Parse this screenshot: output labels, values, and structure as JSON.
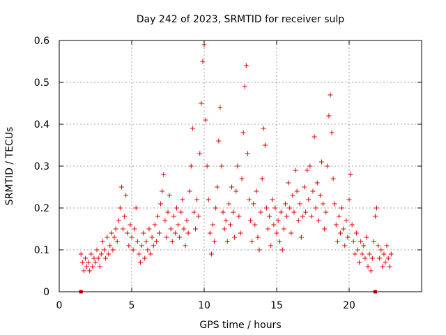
{
  "chart_data": {
    "type": "scatter",
    "title": "Day 242 of 2023, SRMTID for receiver sulp",
    "xlabel": "GPS time / hours",
    "ylabel": "SRMTID / TECUs",
    "xlim": [
      0,
      25
    ],
    "ylim": [
      0,
      0.6
    ],
    "x_ticks": [
      0,
      5,
      10,
      15,
      20
    ],
    "x_tick_labels": [
      "0",
      "5",
      "10",
      "15",
      "20"
    ],
    "y_ticks": [
      0,
      0.1,
      0.2,
      0.3,
      0.4,
      0.5,
      0.6
    ],
    "y_tick_labels": [
      "0",
      "0.1",
      "0.2",
      "0.3",
      "0.4",
      "0.5",
      "0.6"
    ],
    "grid": true,
    "marker": "plus",
    "color": "#e00000",
    "series": [
      {
        "name": "SRMTID",
        "points": [
          [
            1.5,
            0.09
          ],
          [
            1.6,
            0.07
          ],
          [
            1.7,
            0.05
          ],
          [
            1.8,
            0.08
          ],
          [
            1.9,
            0.06
          ],
          [
            2.0,
            0.07
          ],
          [
            2.1,
            0.05
          ],
          [
            2.2,
            0.09
          ],
          [
            2.3,
            0.06
          ],
          [
            2.4,
            0.08
          ],
          [
            2.5,
            0.07
          ],
          [
            2.6,
            0.1
          ],
          [
            2.7,
            0.08
          ],
          [
            2.8,
            0.06
          ],
          [
            2.9,
            0.09
          ],
          [
            3.0,
            0.12
          ],
          [
            3.1,
            0.1
          ],
          [
            3.2,
            0.08
          ],
          [
            3.3,
            0.13
          ],
          [
            3.4,
            0.09
          ],
          [
            3.5,
            0.11
          ],
          [
            3.6,
            0.14
          ],
          [
            3.7,
            0.1
          ],
          [
            3.8,
            0.13
          ],
          [
            3.9,
            0.15
          ],
          [
            4.0,
            0.12
          ],
          [
            4.1,
            0.17
          ],
          [
            4.2,
            0.2
          ],
          [
            4.3,
            0.25
          ],
          [
            4.4,
            0.15
          ],
          [
            4.5,
            0.18
          ],
          [
            4.6,
            0.23
          ],
          [
            4.7,
            0.14
          ],
          [
            4.8,
            0.11
          ],
          [
            4.9,
            0.16
          ],
          [
            5.0,
            0.13
          ],
          [
            5.1,
            0.1
          ],
          [
            5.2,
            0.15
          ],
          [
            5.3,
            0.2
          ],
          [
            5.4,
            0.12
          ],
          [
            5.5,
            0.09
          ],
          [
            5.6,
            0.07
          ],
          [
            5.7,
            0.11
          ],
          [
            5.8,
            0.14
          ],
          [
            5.9,
            0.08
          ],
          [
            6.0,
            0.12
          ],
          [
            6.1,
            0.1
          ],
          [
            6.2,
            0.15
          ],
          [
            6.3,
            0.09
          ],
          [
            6.4,
            0.13
          ],
          [
            6.5,
            0.11
          ],
          [
            6.6,
            0.16
          ],
          [
            6.7,
            0.12
          ],
          [
            6.8,
            0.18
          ],
          [
            6.9,
            0.14
          ],
          [
            7.0,
            0.21
          ],
          [
            7.1,
            0.24
          ],
          [
            7.2,
            0.28
          ],
          [
            7.3,
            0.17
          ],
          [
            7.4,
            0.13
          ],
          [
            7.5,
            0.19
          ],
          [
            7.6,
            0.23
          ],
          [
            7.7,
            0.15
          ],
          [
            7.8,
            0.12
          ],
          [
            7.9,
            0.18
          ],
          [
            8.0,
            0.14
          ],
          [
            8.1,
            0.2
          ],
          [
            8.2,
            0.16
          ],
          [
            8.3,
            0.13
          ],
          [
            8.4,
            0.19
          ],
          [
            8.5,
            0.22
          ],
          [
            8.6,
            0.15
          ],
          [
            8.7,
            0.11
          ],
          [
            8.8,
            0.17
          ],
          [
            8.9,
            0.14
          ],
          [
            9.0,
            0.24
          ],
          [
            9.1,
            0.3
          ],
          [
            9.2,
            0.39
          ],
          [
            9.3,
            0.19
          ],
          [
            9.4,
            0.15
          ],
          [
            9.5,
            0.22
          ],
          [
            9.6,
            0.18
          ],
          [
            9.7,
            0.33
          ],
          [
            9.8,
            0.45
          ],
          [
            9.9,
            0.55
          ],
          [
            10.0,
            0.59
          ],
          [
            10.1,
            0.41
          ],
          [
            10.2,
            0.3
          ],
          [
            10.3,
            0.22
          ],
          [
            10.4,
            0.14
          ],
          [
            10.5,
            0.09
          ],
          [
            10.6,
            0.16
          ],
          [
            10.7,
            0.12
          ],
          [
            10.8,
            0.2
          ],
          [
            10.9,
            0.25
          ],
          [
            11.0,
            0.36
          ],
          [
            11.1,
            0.44
          ],
          [
            11.2,
            0.3
          ],
          [
            11.3,
            0.19
          ],
          [
            11.4,
            0.15
          ],
          [
            11.5,
            0.17
          ],
          [
            11.6,
            0.12
          ],
          [
            11.7,
            0.21
          ],
          [
            11.8,
            0.16
          ],
          [
            11.9,
            0.25
          ],
          [
            12.0,
            0.19
          ],
          [
            12.1,
            0.13
          ],
          [
            12.2,
            0.24
          ],
          [
            12.3,
            0.3
          ],
          [
            12.4,
            0.18
          ],
          [
            12.5,
            0.14
          ],
          [
            12.6,
            0.27
          ],
          [
            12.7,
            0.38
          ],
          [
            12.8,
            0.49
          ],
          [
            12.9,
            0.54
          ],
          [
            13.0,
            0.33
          ],
          [
            13.1,
            0.22
          ],
          [
            13.2,
            0.17
          ],
          [
            13.3,
            0.12
          ],
          [
            13.4,
            0.21
          ],
          [
            13.5,
            0.16
          ],
          [
            13.6,
            0.24
          ],
          [
            13.7,
            0.13
          ],
          [
            13.8,
            0.1
          ],
          [
            13.9,
            0.19
          ],
          [
            14.0,
            0.27
          ],
          [
            14.1,
            0.39
          ],
          [
            14.2,
            0.35
          ],
          [
            14.3,
            0.2
          ],
          [
            14.4,
            0.15
          ],
          [
            14.5,
            0.18
          ],
          [
            14.6,
            0.11
          ],
          [
            14.7,
            0.22
          ],
          [
            14.8,
            0.16
          ],
          [
            14.9,
            0.2
          ],
          [
            15.0,
            0.14
          ],
          [
            15.1,
            0.17
          ],
          [
            15.2,
            0.12
          ],
          [
            15.3,
            0.19
          ],
          [
            15.4,
            0.1
          ],
          [
            15.5,
            0.15
          ],
          [
            15.6,
            0.21
          ],
          [
            15.7,
            0.18
          ],
          [
            15.8,
            0.26
          ],
          [
            15.9,
            0.2
          ],
          [
            16.0,
            0.14
          ],
          [
            16.1,
            0.23
          ],
          [
            16.2,
            0.19
          ],
          [
            16.3,
            0.29
          ],
          [
            16.4,
            0.24
          ],
          [
            16.5,
            0.17
          ],
          [
            16.6,
            0.21
          ],
          [
            16.7,
            0.13
          ],
          [
            16.8,
            0.18
          ],
          [
            16.9,
            0.25
          ],
          [
            17.0,
            0.19
          ],
          [
            17.1,
            0.29
          ],
          [
            17.2,
            0.22
          ],
          [
            17.3,
            0.3
          ],
          [
            17.4,
            0.18
          ],
          [
            17.5,
            0.24
          ],
          [
            17.6,
            0.37
          ],
          [
            17.7,
            0.2
          ],
          [
            17.8,
            0.26
          ],
          [
            17.9,
            0.17
          ],
          [
            18.0,
            0.23
          ],
          [
            18.1,
            0.31
          ],
          [
            18.2,
            0.21
          ],
          [
            18.3,
            0.15
          ],
          [
            18.4,
            0.19
          ],
          [
            18.5,
            0.3
          ],
          [
            18.6,
            0.42
          ],
          [
            18.7,
            0.47
          ],
          [
            18.8,
            0.38
          ],
          [
            18.9,
            0.27
          ],
          [
            19.0,
            0.21
          ],
          [
            19.1,
            0.16
          ],
          [
            19.2,
            0.12
          ],
          [
            19.3,
            0.18
          ],
          [
            19.4,
            0.14
          ],
          [
            19.5,
            0.2
          ],
          [
            19.6,
            0.15
          ],
          [
            19.7,
            0.11
          ],
          [
            19.8,
            0.17
          ],
          [
            19.9,
            0.13
          ],
          [
            20.0,
            0.22
          ],
          [
            20.1,
            0.28
          ],
          [
            20.2,
            0.16
          ],
          [
            20.3,
            0.12
          ],
          [
            20.4,
            0.09
          ],
          [
            20.5,
            0.14
          ],
          [
            20.6,
            0.1
          ],
          [
            20.7,
            0.07
          ],
          [
            20.8,
            0.12
          ],
          [
            20.9,
            0.09
          ],
          [
            21.0,
            0.11
          ],
          [
            21.1,
            0.08
          ],
          [
            21.2,
            0.13
          ],
          [
            21.3,
            0.06
          ],
          [
            21.4,
            0.09
          ],
          [
            21.5,
            0.05
          ],
          [
            21.6,
            0.08
          ],
          [
            21.7,
            0.12
          ],
          [
            21.8,
            0.18
          ],
          [
            21.9,
            0.2
          ],
          [
            22.0,
            0.11
          ],
          [
            22.1,
            0.08
          ],
          [
            22.2,
            0.1
          ],
          [
            22.3,
            0.06
          ],
          [
            22.4,
            0.09
          ],
          [
            22.5,
            0.07
          ],
          [
            22.6,
            0.11
          ],
          [
            22.7,
            0.08
          ],
          [
            22.8,
            0.06
          ],
          [
            22.9,
            0.09
          ]
        ]
      }
    ],
    "baseline_markers_x": [
      1.5,
      21.8
    ]
  }
}
